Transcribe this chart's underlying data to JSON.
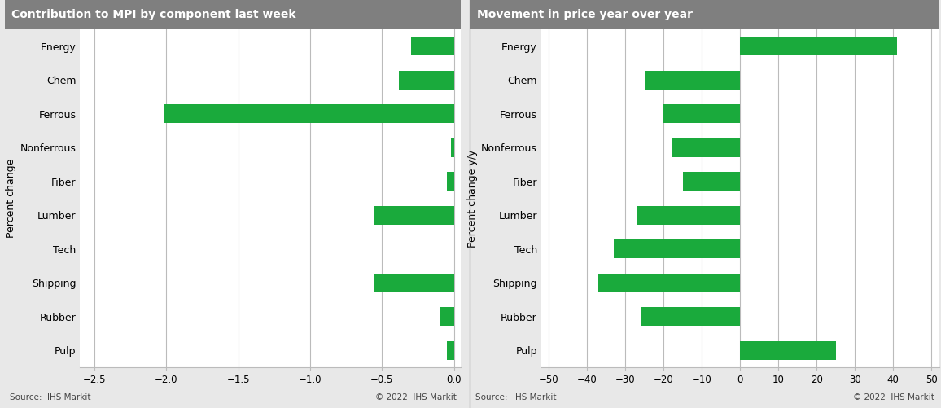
{
  "categories": [
    "Energy",
    "Chem",
    "Ferrous",
    "Nonferrous",
    "Fiber",
    "Lumber",
    "Tech",
    "Shipping",
    "Rubber",
    "Pulp"
  ],
  "left_values": [
    -0.3,
    -0.38,
    -2.02,
    -0.02,
    -0.05,
    -0.55,
    0.0,
    -0.55,
    -0.1,
    -0.05
  ],
  "right_values": [
    41,
    -25,
    -20,
    -18,
    -15,
    -27,
    -33,
    -37,
    -26,
    25
  ],
  "left_title": "Contribution to MPI by component last week",
  "right_title": "Movement in price year over year",
  "left_ylabel": "Percent change",
  "right_ylabel": "Percent change y/y",
  "left_xlim": [
    -2.6,
    0.05
  ],
  "right_xlim": [
    -52,
    52
  ],
  "left_xticks": [
    -2.5,
    -2.0,
    -1.5,
    -1.0,
    -0.5,
    0.0
  ],
  "right_xticks": [
    -50,
    -40,
    -30,
    -20,
    -10,
    0,
    10,
    20,
    30,
    40,
    50
  ],
  "bar_color": "#1aaa3c",
  "title_bg_color": "#7f7f7f",
  "title_text_color": "#ffffff",
  "source_text": "Source:  IHS Markit",
  "copyright_text": "© 2022  IHS Markit",
  "bg_color": "#e8e8e8",
  "plot_bg_color": "#ffffff",
  "bar_height": 0.55,
  "grid_color": "#bbbbbb",
  "tick_label_size": 8.5,
  "ylabel_size": 9,
  "category_label_size": 9,
  "title_fontsize": 10,
  "source_fontsize": 7.5,
  "divider_color": "#aaaaaa"
}
